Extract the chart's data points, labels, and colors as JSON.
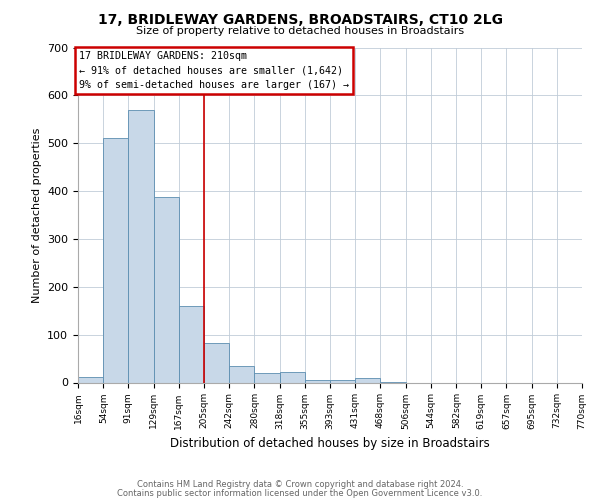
{
  "title": "17, BRIDLEWAY GARDENS, BROADSTAIRS, CT10 2LG",
  "subtitle": "Size of property relative to detached houses in Broadstairs",
  "xlabel": "Distribution of detached houses by size in Broadstairs",
  "ylabel": "Number of detached properties",
  "bar_color": "#c8d8e8",
  "bar_edge_color": "#5b8db0",
  "bin_edges": [
    16,
    54,
    91,
    129,
    167,
    205,
    242,
    280,
    318,
    355,
    393,
    431,
    468,
    506,
    544,
    582,
    619,
    657,
    695,
    732,
    770
  ],
  "bin_labels": [
    "16sqm",
    "54sqm",
    "91sqm",
    "129sqm",
    "167sqm",
    "205sqm",
    "242sqm",
    "280sqm",
    "318sqm",
    "355sqm",
    "393sqm",
    "431sqm",
    "468sqm",
    "506sqm",
    "544sqm",
    "582sqm",
    "619sqm",
    "657sqm",
    "695sqm",
    "732sqm",
    "770sqm"
  ],
  "bar_heights": [
    12,
    510,
    570,
    388,
    160,
    83,
    34,
    20,
    22,
    5,
    5,
    10,
    1,
    0,
    0,
    0,
    0,
    0,
    0,
    0
  ],
  "ylim": [
    0,
    700
  ],
  "yticks": [
    0,
    100,
    200,
    300,
    400,
    500,
    600,
    700
  ],
  "vline_x": 205,
  "vline_color": "#cc0000",
  "annotation_title": "17 BRIDLEWAY GARDENS: 210sqm",
  "annotation_line1": "← 91% of detached houses are smaller (1,642)",
  "annotation_line2": "9% of semi-detached houses are larger (167) →",
  "annotation_box_color": "#cc0000",
  "footer1": "Contains HM Land Registry data © Crown copyright and database right 2024.",
  "footer2": "Contains public sector information licensed under the Open Government Licence v3.0.",
  "background_color": "#ffffff",
  "grid_color": "#c0ccd8"
}
